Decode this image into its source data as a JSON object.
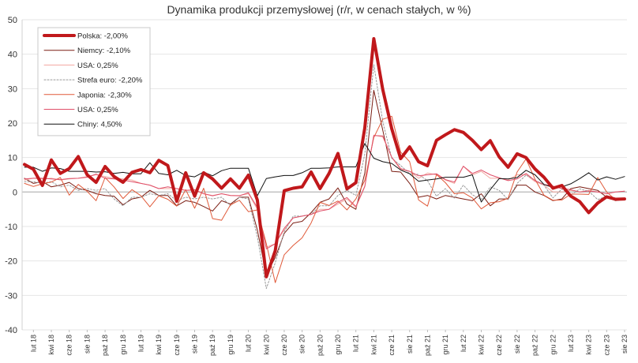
{
  "chart_data": {
    "type": "line",
    "title": "Dynamika produkcji przemysłowej (r/r, w cenach stałych, w %)",
    "xlabel": "",
    "ylabel": "",
    "ylim": [
      -40,
      50
    ],
    "yticks": [
      -40,
      -30,
      -20,
      -10,
      0,
      10,
      20,
      30,
      40,
      50
    ],
    "grid": "horizontal",
    "legend_position": "top-left",
    "x_tick_labels": [
      "lut 18",
      "kwi 18",
      "cze 18",
      "sie 18",
      "paź 18",
      "gru 18",
      "lut 19",
      "kwi 19",
      "cze 19",
      "sie 19",
      "paź 19",
      "gru 19",
      "lut 20",
      "kwi 20",
      "cze 20",
      "sie 20",
      "paź 20",
      "gru 20",
      "lut 21",
      "kwi 21",
      "cze 21",
      "sie 21",
      "paź 21",
      "gru 21",
      "lut 22",
      "kwi 22",
      "cze 22",
      "sie 22",
      "paź 22",
      "gru 22",
      "lut 23",
      "kwi 23",
      "cze 23",
      "sie 23"
    ],
    "x": [
      "sty 18",
      "lut 18",
      "mar 18",
      "kwi 18",
      "maj 18",
      "cze 18",
      "lip 18",
      "sie 18",
      "wrz 18",
      "paź 18",
      "lis 18",
      "gru 18",
      "sty 19",
      "lut 19",
      "mar 19",
      "kwi 19",
      "maj 19",
      "cze 19",
      "lip 19",
      "sie 19",
      "wrz 19",
      "paź 19",
      "lis 19",
      "gru 19",
      "sty 20",
      "lut 20",
      "mar 20",
      "kwi 20",
      "maj 20",
      "cze 20",
      "lip 20",
      "sie 20",
      "wrz 20",
      "paź 20",
      "lis 20",
      "gru 20",
      "sty 21",
      "lut 21",
      "mar 21",
      "kwi 21",
      "maj 21",
      "cze 21",
      "lip 21",
      "sie 21",
      "wrz 21",
      "paź 21",
      "lis 21",
      "gru 21",
      "sty 22",
      "lut 22",
      "mar 22",
      "kwi 22",
      "maj 22",
      "cze 22",
      "lip 22",
      "sie 22",
      "wrz 22",
      "paź 22",
      "lis 22",
      "gru 22",
      "sty 23",
      "lut 23",
      "mar 23",
      "kwi 23",
      "maj 23",
      "cze 23",
      "lip 23",
      "sie 23"
    ],
    "series": [
      {
        "name": "Polska: -2,00%",
        "color": "#c0181b",
        "width": 4,
        "dash": "",
        "values": [
          8.0,
          6.6,
          1.9,
          9.3,
          5.4,
          6.8,
          10.3,
          5.0,
          2.8,
          7.4,
          4.5,
          2.8,
          5.7,
          6.5,
          5.6,
          9.2,
          7.7,
          -2.7,
          5.6,
          -1.2,
          5.6,
          3.8,
          1.1,
          3.8,
          1.1,
          4.9,
          -2.3,
          -24.6,
          -17.0,
          0.4,
          1.1,
          1.5,
          5.8,
          1.0,
          5.4,
          11.2,
          0.9,
          2.7,
          18.6,
          44.5,
          29.8,
          18.4,
          9.7,
          13.1,
          8.8,
          7.6,
          15.0,
          16.6,
          18.1,
          17.3,
          15.0,
          12.3,
          14.9,
          10.2,
          7.2,
          11.1,
          10.0,
          6.7,
          4.3,
          1.1,
          1.9,
          -1.2,
          -2.8,
          -6.0,
          -3.2,
          -1.4,
          -2.1,
          -2.0
        ]
      },
      {
        "name": "Niemcy: -2,10%",
        "color": "#7a1c12",
        "width": 1,
        "dash": "",
        "values": [
          4.0,
          2.5,
          3.0,
          1.5,
          2.0,
          2.8,
          1.0,
          0.5,
          -0.5,
          -1.0,
          -1.2,
          -3.7,
          -2.0,
          -1.5,
          0.5,
          -1.0,
          -1.0,
          -4.0,
          -2.5,
          -3.0,
          -4.2,
          -5.5,
          -2.5,
          -3.5,
          -1.5,
          -1.5,
          -11.0,
          -24.0,
          -19.0,
          -12.0,
          -9.0,
          -8.5,
          -6.0,
          -3.0,
          -2.0,
          1.2,
          -3.5,
          -5.0,
          5.5,
          29.5,
          18.0,
          6.0,
          5.8,
          2.5,
          -1.5,
          -1.0,
          -2.0,
          -1.0,
          -1.5,
          -2.0,
          -2.5,
          -0.5,
          -4.0,
          -2.0,
          -2.0,
          2.0,
          2.0,
          0.0,
          -1.0,
          -2.5,
          -2.0,
          1.0,
          1.5,
          1.0,
          0.5,
          -1.5,
          -2.5,
          -2.1
        ]
      },
      {
        "name": "USA: 0,25%",
        "color": "#f2a8a0",
        "width": 1,
        "dash": "",
        "values": [
          3.5,
          4.0,
          3.8,
          4.0,
          3.5,
          3.8,
          4.0,
          4.5,
          5.0,
          4.5,
          4.0,
          3.8,
          3.5,
          2.5,
          2.0,
          1.0,
          1.0,
          1.0,
          0.5,
          0.5,
          -0.5,
          -1.0,
          -0.5,
          -1.0,
          -1.0,
          -0.5,
          -5.0,
          -16.0,
          -15.0,
          -11.0,
          -7.5,
          -7.0,
          -6.5,
          -5.0,
          -5.0,
          -3.5,
          -2.0,
          -4.5,
          1.5,
          16.5,
          16.0,
          10.0,
          6.5,
          6.0,
          4.0,
          5.5,
          5.0,
          3.5,
          2.5,
          7.5,
          5.0,
          6.0,
          4.0,
          4.0,
          3.5,
          5.0,
          5.0,
          3.0,
          2.0,
          0.0,
          0.0,
          0.5,
          0.0,
          0.5,
          0.0,
          -0.5,
          0.0,
          0.25
        ]
      },
      {
        "name": "Strefa euro: -2,20%",
        "color": "#999999",
        "width": 1,
        "dash": "2,2",
        "values": [
          3.0,
          3.0,
          2.5,
          3.0,
          1.5,
          2.0,
          0.5,
          1.0,
          0.5,
          1.0,
          -2.0,
          -4.0,
          -1.5,
          -1.5,
          -0.5,
          -1.0,
          -0.5,
          -2.5,
          -1.5,
          -2.0,
          -1.5,
          -2.0,
          -1.5,
          -4.0,
          -1.5,
          -2.0,
          -13.0,
          -28.0,
          -20.5,
          -11.5,
          -7.0,
          -7.0,
          -6.5,
          -4.0,
          -4.0,
          -1.0,
          0.5,
          -1.0,
          11.0,
          37.0,
          20.5,
          9.8,
          7.7,
          5.3,
          5.1,
          3.3,
          -1.2,
          1.0,
          -1.8,
          2.0,
          -0.8,
          -2.2,
          1.5,
          0.5,
          -2.2,
          2.5,
          4.9,
          3.4,
          2.0,
          -1.7,
          0.9,
          -0.9,
          0.9,
          0.2,
          -2.2,
          -1.2,
          -2.2,
          -2.2
        ]
      },
      {
        "name": "Japonia: -2,30%",
        "color": "#e05a3a",
        "width": 1,
        "dash": "",
        "values": [
          2.5,
          1.6,
          2.4,
          2.9,
          4.2,
          -0.9,
          2.2,
          0.2,
          -2.5,
          4.2,
          1.5,
          -1.9,
          0.7,
          -1.1,
          -4.3,
          -1.1,
          -2.1,
          -4.1,
          0.7,
          -4.7,
          1.1,
          -7.7,
          -8.2,
          -3.7,
          -2.4,
          -5.7,
          -5.2,
          -15.0,
          -26.3,
          -18.2,
          -15.5,
          -13.3,
          -9.0,
          -3.0,
          -3.9,
          -2.6,
          -5.2,
          -2.0,
          3.4,
          15.8,
          21.1,
          22.0,
          11.6,
          8.8,
          -2.3,
          -4.1,
          5.1,
          2.7,
          -0.5,
          -0.2,
          -1.7,
          -4.9,
          -3.1,
          -2.8,
          -1.8,
          5.8,
          9.6,
          3.7,
          -0.9,
          -2.4,
          -2.3,
          -0.6,
          -0.6,
          -0.7,
          4.2,
          0.0,
          -2.3,
          -2.3
        ]
      },
      {
        "name": "USA: 0,25%",
        "color": "#e0506a",
        "width": 1,
        "dash": "",
        "values": [
          3.8,
          4.0,
          4.0,
          3.8,
          3.6,
          3.9,
          4.0,
          4.3,
          5.2,
          4.0,
          3.8,
          3.5,
          3.0,
          2.5,
          2.0,
          1.0,
          1.5,
          1.0,
          0.5,
          0.7,
          -0.5,
          -1.1,
          -0.5,
          -1.0,
          -1.1,
          -0.2,
          -4.5,
          -16.5,
          -15.0,
          -10.5,
          -7.5,
          -7.0,
          -6.5,
          -5.5,
          -5.0,
          -3.0,
          -1.6,
          -4.2,
          1.7,
          16.4,
          16.3,
          10.1,
          6.8,
          6.0,
          4.7,
          5.0,
          5.3,
          3.6,
          2.9,
          7.5,
          5.4,
          6.4,
          5.0,
          4.1,
          3.3,
          3.8,
          5.4,
          3.3,
          2.2,
          1.7,
          1.0,
          0.7,
          0.0,
          0.3,
          0.0,
          -0.5,
          0.0,
          0.25
        ]
      },
      {
        "name": "Chiny: 4,50%",
        "color": "#111111",
        "width": 1,
        "dash": "",
        "values": [
          7.2,
          7.2,
          6.0,
          7.0,
          6.8,
          6.0,
          6.0,
          6.0,
          5.8,
          5.9,
          5.4,
          5.7,
          5.3,
          5.3,
          8.5,
          5.4,
          5.0,
          6.3,
          4.8,
          4.4,
          5.8,
          4.7,
          6.2,
          6.9,
          6.9,
          6.9,
          -1.1,
          3.9,
          4.4,
          4.8,
          4.8,
          5.6,
          6.9,
          6.9,
          7.0,
          7.3,
          7.3,
          7.3,
          14.1,
          9.8,
          8.8,
          8.3,
          6.4,
          5.3,
          3.1,
          3.5,
          3.8,
          4.3,
          4.3,
          4.3,
          5.0,
          -2.9,
          0.7,
          3.9,
          3.8,
          4.2,
          6.3,
          5.0,
          2.2,
          1.3,
          1.5,
          2.4,
          3.9,
          5.6,
          3.5,
          4.4,
          3.7,
          4.5
        ]
      }
    ]
  }
}
